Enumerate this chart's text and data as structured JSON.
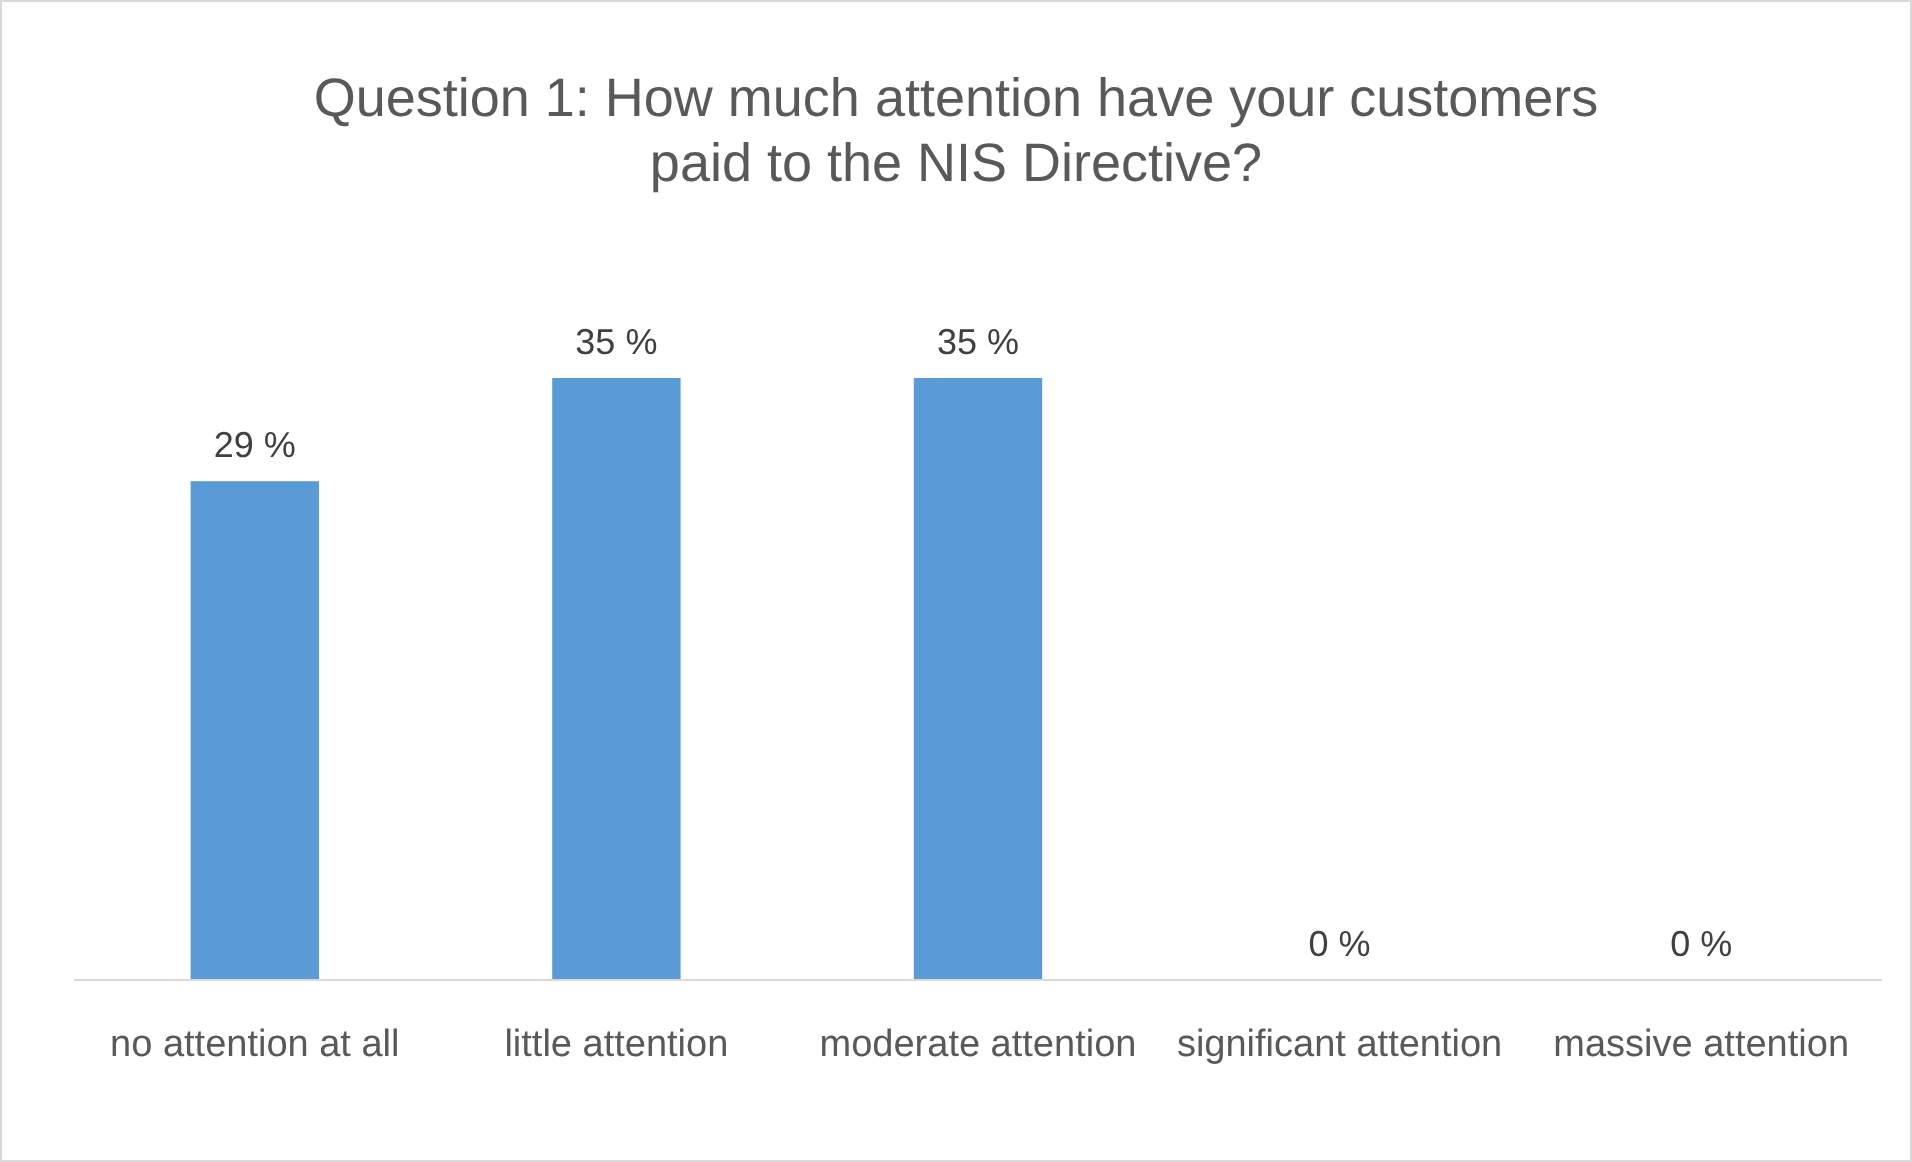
{
  "chart_data": {
    "type": "bar",
    "title": "Question 1: How much attention have your customers paid to the NIS Directive?",
    "categories": [
      "no attention at all",
      "little attention",
      "moderate attention",
      "significant attention",
      "massive attention"
    ],
    "values": [
      29,
      35,
      35,
      0,
      0
    ],
    "value_labels": [
      "29 %",
      "35 %",
      "35 %",
      "0 %",
      "0 %"
    ],
    "color": "#5b9bd5"
  }
}
